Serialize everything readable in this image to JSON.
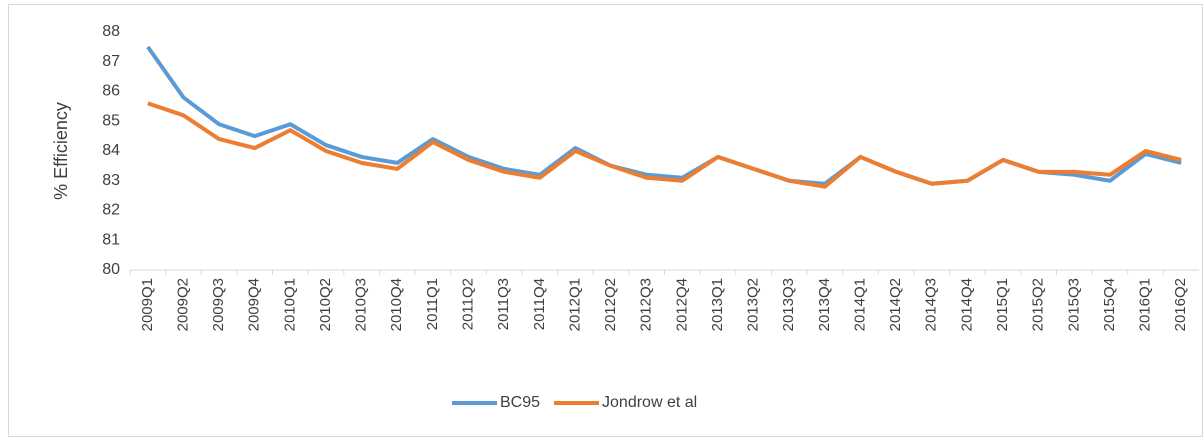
{
  "chart_data": {
    "type": "line",
    "y_label": "% Efficiency",
    "categories": [
      "2009Q1",
      "2009Q2",
      "2009Q3",
      "2009Q4",
      "2010Q1",
      "2010Q2",
      "2010Q3",
      "2010Q4",
      "2011Q1",
      "2011Q2",
      "2011Q3",
      "2011Q4",
      "2012Q1",
      "2012Q2",
      "2012Q3",
      "2012Q4",
      "2013Q1",
      "2013Q2",
      "2013Q3",
      "2013Q4",
      "2014Q1",
      "2014Q2",
      "2014Q3",
      "2014Q4",
      "2015Q1",
      "2015Q2",
      "2015Q3",
      "2015Q4",
      "2016Q1",
      "2016Q2"
    ],
    "series": [
      {
        "name": "BC95",
        "color": "#5b9bd5",
        "values": [
          87.5,
          85.8,
          84.9,
          84.5,
          84.9,
          84.2,
          83.8,
          83.6,
          84.4,
          83.8,
          83.4,
          83.2,
          84.1,
          83.5,
          83.2,
          83.1,
          83.8,
          83.4,
          83.0,
          82.9,
          83.8,
          83.3,
          82.9,
          83.0,
          83.7,
          83.3,
          83.2,
          83.0,
          83.9,
          83.6
        ]
      },
      {
        "name": "Jondrow et al",
        "color": "#ed7d31",
        "values": [
          85.6,
          85.2,
          84.4,
          84.1,
          84.7,
          84.0,
          83.6,
          83.4,
          84.3,
          83.7,
          83.3,
          83.1,
          84.0,
          83.5,
          83.1,
          83.0,
          83.8,
          83.4,
          83.0,
          82.8,
          83.8,
          83.3,
          82.9,
          83.0,
          83.7,
          83.3,
          83.3,
          83.2,
          84.0,
          83.7
        ]
      }
    ],
    "ylim": [
      80,
      88
    ],
    "yticks": [
      80,
      81,
      82,
      83,
      84,
      85,
      86,
      87,
      88
    ],
    "grid": false,
    "legend": "bottom"
  }
}
